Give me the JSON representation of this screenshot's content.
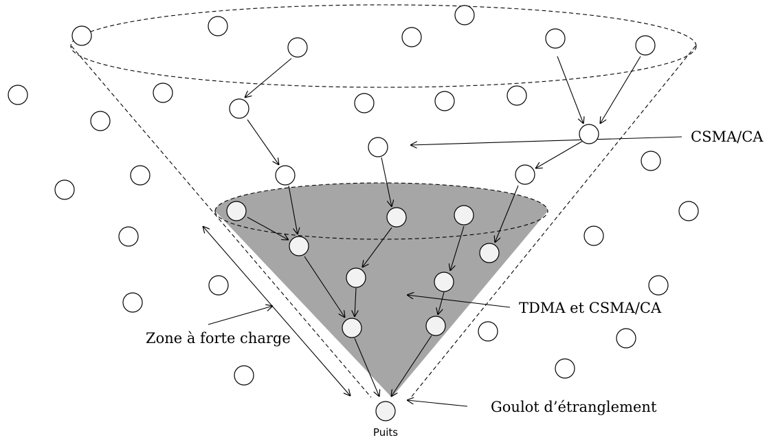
{
  "labels": {
    "csma": "CSMA/CA",
    "tdma": "TDMA et CSMA/CA",
    "zone": "Zone à forte charge",
    "goulot": "Goulot d’étranglement",
    "puits": "Puits"
  },
  "colors": {
    "shaded_zone": "#a6a6a6",
    "node_filled": "#f2f2f2",
    "node_empty": "#ffffff",
    "line": "#000000"
  }
}
